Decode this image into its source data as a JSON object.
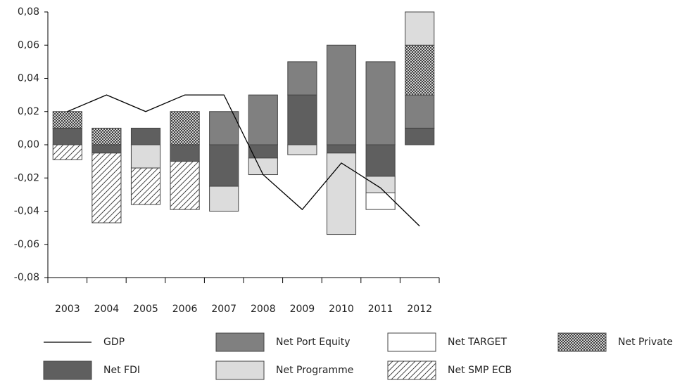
{
  "chart_data": {
    "type": "stacked-bar-line",
    "categories": [
      "2003",
      "2004",
      "2005",
      "2006",
      "2007",
      "2008",
      "2009",
      "2010",
      "2011",
      "2012"
    ],
    "ylim": [
      -0.08,
      0.08
    ],
    "yticks": [
      {
        "value": -0.08,
        "label": "-0,08"
      },
      {
        "value": -0.06,
        "label": "-0,06"
      },
      {
        "value": -0.04,
        "label": "-0,04"
      },
      {
        "value": -0.02,
        "label": "-0,02"
      },
      {
        "value": 0,
        "label": "0,00"
      },
      {
        "value": 0.02,
        "label": "0,02"
      },
      {
        "value": 0.04,
        "label": "0,04"
      },
      {
        "value": 0.06,
        "label": "0,06"
      },
      {
        "value": 0.08,
        "label": "0,08"
      }
    ],
    "line": {
      "name": "GDP",
      "color": "#000000",
      "values": [
        0.02,
        0.03,
        0.02,
        0.03,
        0.03,
        -0.018,
        -0.039,
        -0.011,
        -0.026,
        -0.049
      ]
    },
    "series": [
      {
        "name": "Net FDI",
        "color": "#5f5f5f",
        "pattern": "solid",
        "values": [
          0.01,
          -0.005,
          0.01,
          -0.01,
          -0.025,
          -0.008,
          0.03,
          -0.005,
          -0.019,
          0.01
        ]
      },
      {
        "name": "Net Port Equity",
        "color": "#808080",
        "pattern": "solid",
        "values": [
          0,
          0,
          0,
          0,
          0.02,
          0.03,
          0.02,
          0.06,
          0.05,
          0.02
        ]
      },
      {
        "name": "Net Private Debt",
        "color": "#000000",
        "pattern": "cross",
        "values": [
          0.01,
          0.01,
          0,
          0.02,
          0,
          0,
          0,
          0,
          0,
          0.03
        ]
      },
      {
        "name": "Net Programme",
        "color": "#dcdcdc",
        "pattern": "solid",
        "values": [
          0,
          0,
          -0.014,
          0,
          -0.015,
          -0.01,
          -0.006,
          -0.049,
          -0.01,
          0.02
        ]
      },
      {
        "name": "Net TARGET",
        "color": "#ffffff",
        "pattern": "solid",
        "values": [
          0,
          0,
          0,
          0,
          0,
          0,
          0,
          0,
          -0.01,
          0
        ]
      },
      {
        "name": "Net SMP ECB",
        "color": "#000000",
        "pattern": "hatch",
        "values": [
          -0.009,
          -0.042,
          -0.022,
          -0.029,
          0,
          0,
          0,
          0,
          0,
          0
        ]
      }
    ]
  }
}
